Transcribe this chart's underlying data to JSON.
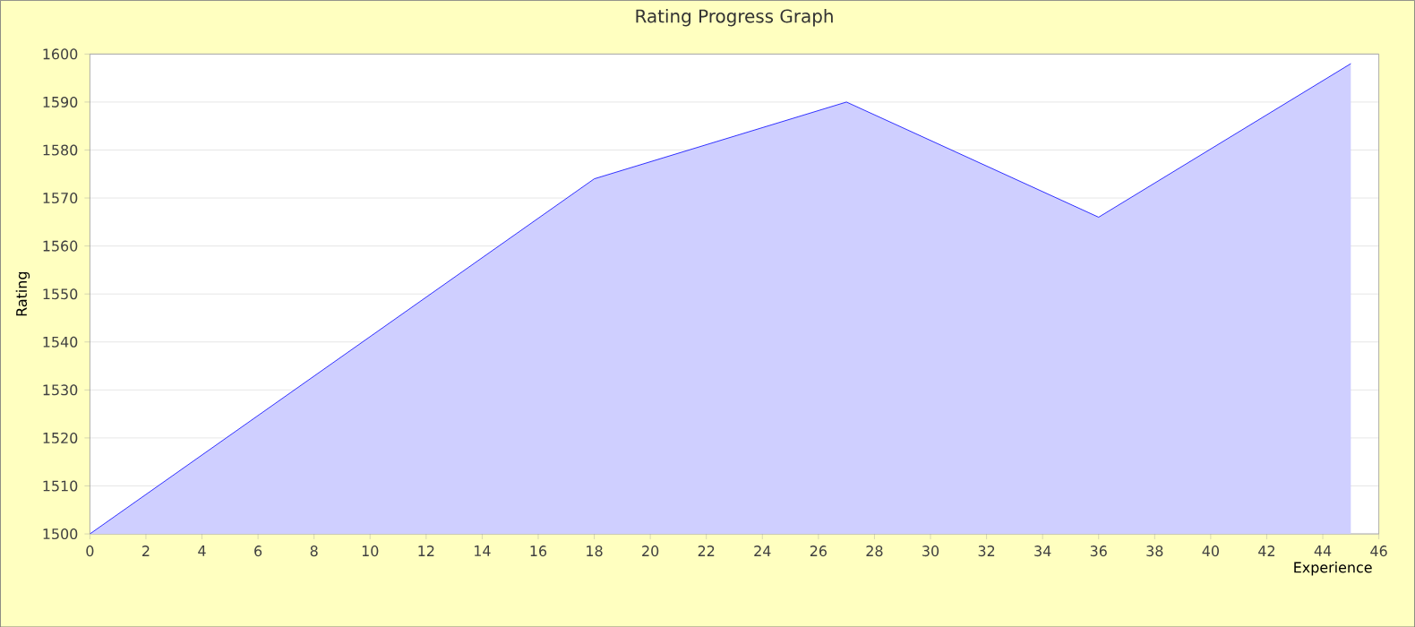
{
  "chart_data": {
    "type": "area",
    "title": "Rating Progress Graph",
    "xlabel": "Experience",
    "ylabel": "Rating",
    "x": [
      0,
      18,
      27,
      36,
      45
    ],
    "series": [
      {
        "color": "#0000ff",
        "values": [
          1500,
          1574,
          1590,
          1566,
          1598
        ]
      }
    ],
    "xlim": [
      0,
      46
    ],
    "ylim": [
      1500,
      1600
    ],
    "xticks": [
      0,
      2,
      4,
      6,
      8,
      10,
      12,
      14,
      16,
      18,
      20,
      22,
      24,
      26,
      28,
      30,
      32,
      34,
      36,
      38,
      40,
      42,
      44,
      46
    ],
    "yticks": [
      1500,
      1510,
      1520,
      1530,
      1540,
      1550,
      1560,
      1570,
      1580,
      1590,
      1600
    ],
    "grid": "y",
    "marker": "none",
    "line_style": "solid"
  }
}
